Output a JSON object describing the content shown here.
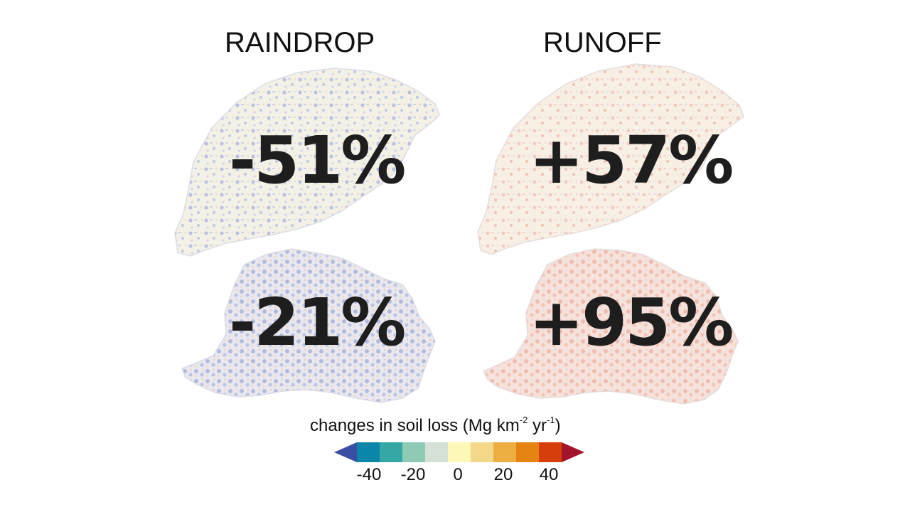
{
  "columns": {
    "left": "RAINDROP",
    "right": "RUNOFF"
  },
  "panels": [
    {
      "column": "RAINDROP",
      "row": 1,
      "value": "-51%",
      "dominant_tone": "blue"
    },
    {
      "column": "RUNOFF",
      "row": 1,
      "value": "+57%",
      "dominant_tone": "red"
    },
    {
      "column": "RAINDROP",
      "row": 2,
      "value": "-21%",
      "dominant_tone": "blue"
    },
    {
      "column": "RUNOFF",
      "row": 2,
      "value": "+95%",
      "dominant_tone": "red"
    }
  ],
  "legend": {
    "title_main": "changes in soil loss (Mg km",
    "title_exp1": "-2",
    "title_mid": " yr",
    "title_exp2": "-1",
    "title_end": ")",
    "ticks": [
      "-40",
      "-20",
      "0",
      "20",
      "40"
    ],
    "colors": [
      "#3a4fa3",
      "#0b86a8",
      "#35a8a6",
      "#8fcab4",
      "#d5e0d6",
      "#fdf8b8",
      "#f4d88a",
      "#ecae41",
      "#e58412",
      "#d63e0c",
      "#a3142b"
    ]
  }
}
